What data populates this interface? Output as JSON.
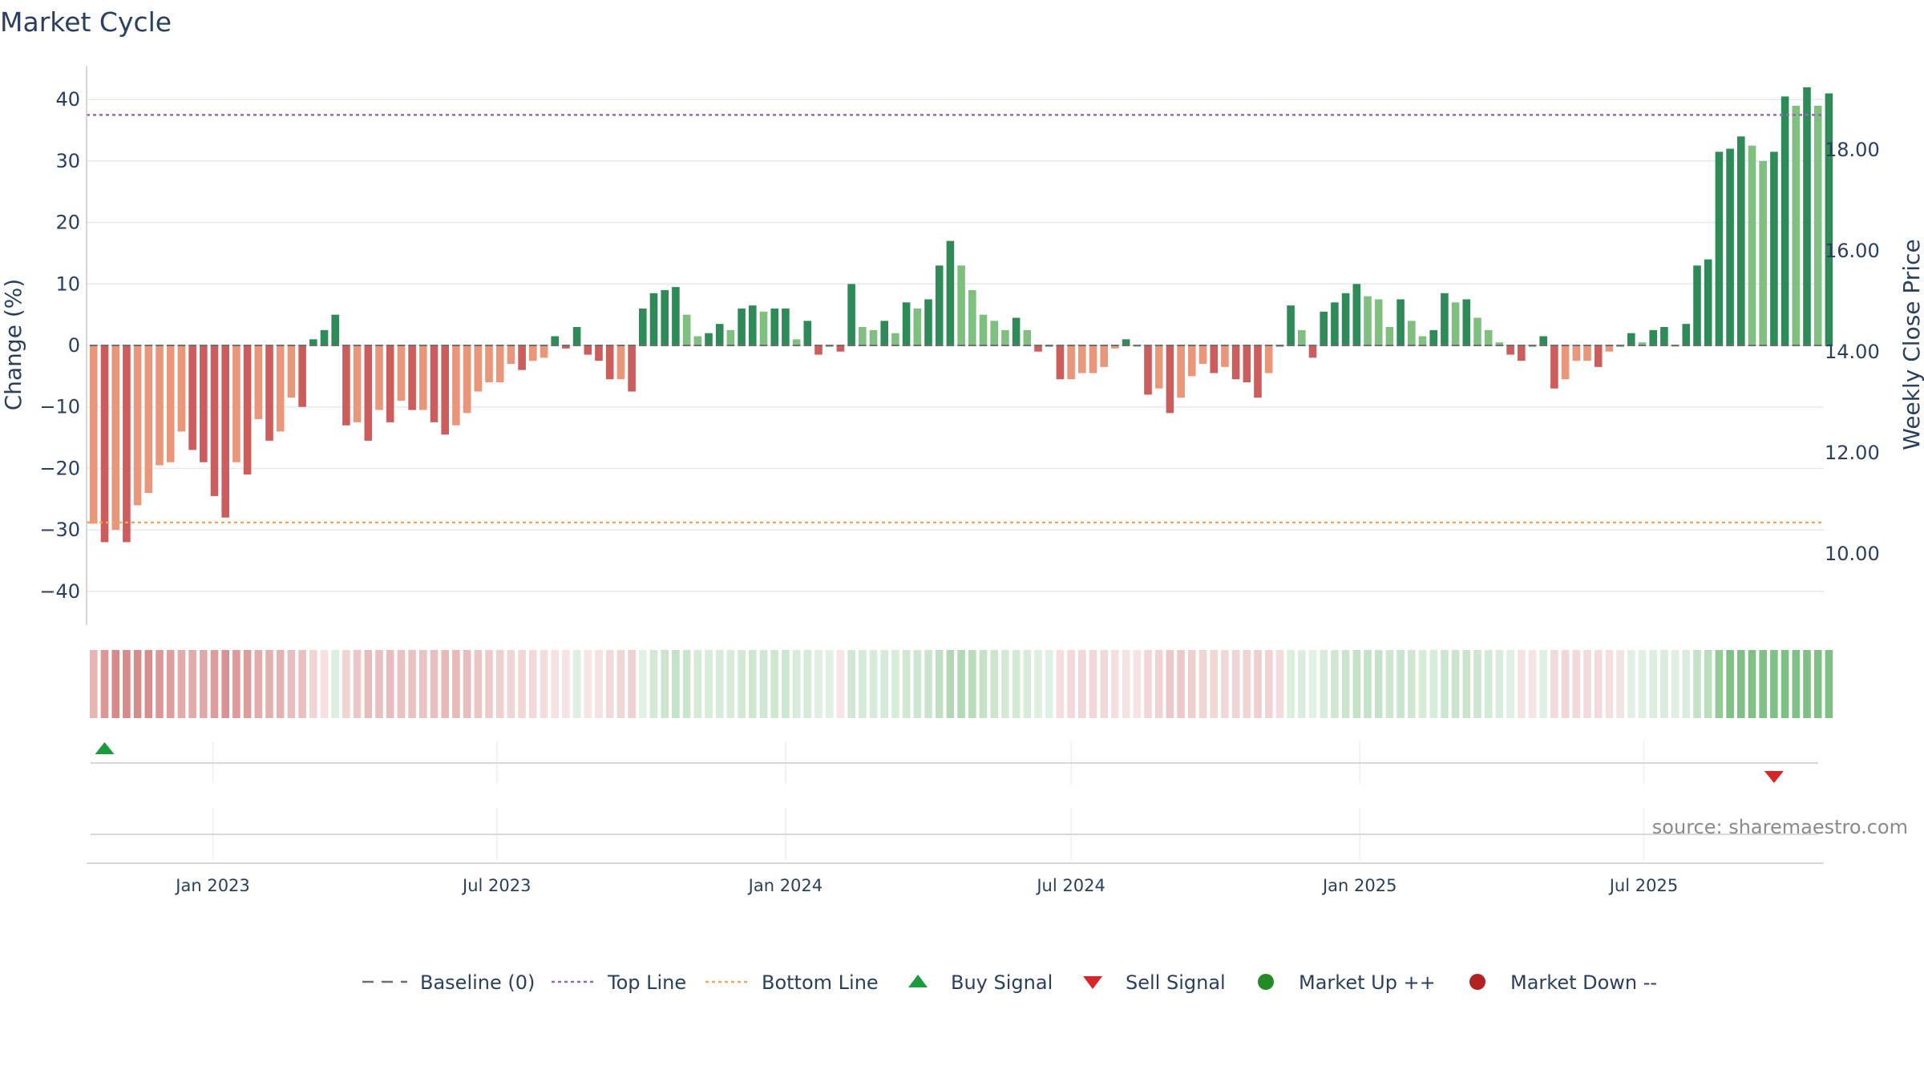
{
  "chart_data": {
    "type": "bar",
    "title": "Market Cycle",
    "ylabel": "Change (%)",
    "y2label": "Weekly Close Price",
    "ylim": [
      -46,
      46
    ],
    "yticks": [
      40,
      30,
      20,
      10,
      0,
      -10,
      -20,
      -30,
      -40
    ],
    "ytick_labels": [
      "40",
      "30",
      "20",
      "10",
      "0",
      "−10",
      "−20",
      "−30",
      "−40"
    ],
    "y2ticks": [
      18,
      16,
      14,
      12,
      10
    ],
    "y2tick_labels": [
      "18.00",
      "16.00",
      "14.00",
      "12.00",
      "10.00"
    ],
    "top_line": 37.5,
    "bottom_line": -28.8,
    "x_start": "2022-10-17",
    "x_step_days": 7,
    "xtick_dates": [
      "2023-01-01",
      "2023-07-01",
      "2024-01-01",
      "2024-07-01",
      "2025-01-01",
      "2025-07-01"
    ],
    "xtick_labels": [
      "Jan 2023",
      "Jul 2023",
      "Jan 2024",
      "Jul 2024",
      "Jan 2025",
      "Jul 2025"
    ],
    "values": [
      -29,
      -32,
      -30,
      -32,
      -26,
      -24,
      -19.5,
      -19,
      -14,
      -17,
      -19,
      -24.5,
      -28,
      -19,
      -21,
      -12,
      -15.5,
      -14,
      -8.5,
      -10,
      1,
      2.5,
      5,
      -13,
      -12.5,
      -15.5,
      -10.5,
      -12.5,
      -9,
      -10.5,
      -10.5,
      -12.5,
      -14.5,
      -13,
      -11,
      -7.5,
      -6,
      -6,
      -3,
      -4,
      -2.5,
      -2,
      1.5,
      -0.5,
      3,
      -1.5,
      -2.5,
      -5.5,
      -5.5,
      -7.5,
      6,
      8.5,
      9,
      9.5,
      5,
      1.5,
      2,
      3.5,
      2.5,
      6,
      6.5,
      5.5,
      6,
      6,
      1,
      4,
      -1.5,
      0,
      -1,
      10,
      3,
      2.5,
      4,
      2,
      7,
      6,
      7.5,
      13,
      17,
      13,
      9,
      5,
      4,
      2.5,
      4.5,
      2.5,
      -1,
      0,
      -5.5,
      -5.5,
      -4.5,
      -4.5,
      -3.5,
      -0.5,
      1,
      0,
      -8,
      -7,
      -11,
      -8.5,
      -5,
      -3,
      -4.5,
      -3.5,
      -5.5,
      -6,
      -8.5,
      -4.5,
      0,
      6.5,
      2.5,
      -2,
      5.5,
      7,
      8.5,
      10,
      8,
      7.5,
      3,
      7.5,
      4,
      1.5,
      2.5,
      8.5,
      7,
      7.5,
      4.5,
      2.5,
      0.5,
      -1.5,
      -2.5,
      0,
      1.5,
      -7,
      -5.5,
      -2.5,
      -2.5,
      -3.5,
      -1,
      0,
      2,
      0.5,
      2.5,
      3,
      0,
      3.5,
      13,
      14,
      31.5,
      32,
      34,
      32.5,
      30,
      31.5,
      40.5,
      39,
      42,
      39,
      41
    ],
    "signals": [
      {
        "type": "buy",
        "date": "2022-10-24"
      },
      {
        "type": "sell",
        "date": "2025-09-22"
      }
    ],
    "source": "source: sharemaestro.com",
    "legend": [
      "Baseline (0)",
      "Top Line",
      "Bottom Line",
      "Buy Signal",
      "Sell Signal",
      "Market Up ++",
      "Market Down --"
    ],
    "legend_placement": "bottom-center",
    "colors": {
      "up_dark": "#2e8b57",
      "up_light": "#7fbf7f",
      "down_dark": "#cd5c5c",
      "down_light": "#e9967a",
      "top_line": "#9467bd",
      "bottom_line": "#f4a460",
      "baseline": "#808080",
      "buy": "#1a9c3e",
      "sell": "#d62728",
      "market_up": "#228b22",
      "market_down": "#b22222"
    }
  }
}
